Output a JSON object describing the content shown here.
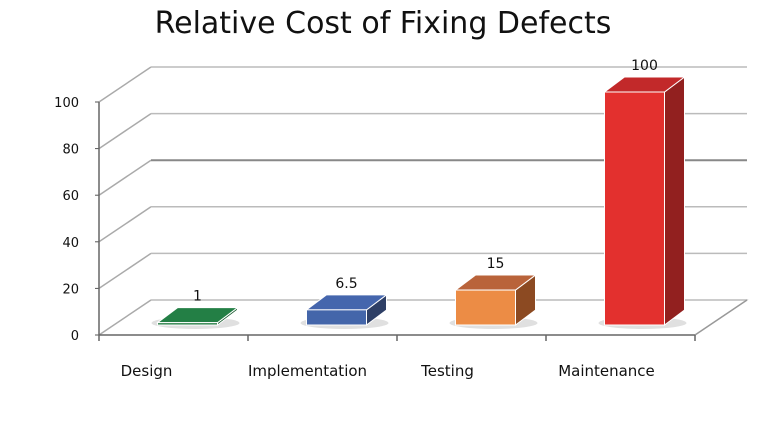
{
  "chart_data": {
    "type": "bar",
    "title": "Relative Cost of Fixing Defects",
    "categories": [
      "Design",
      "Implementation",
      "Testing",
      "Maintenance"
    ],
    "values": [
      1,
      6.5,
      15,
      100
    ],
    "data_labels": [
      "1",
      "6.5",
      "15",
      "100"
    ],
    "colors": [
      "#1f7a3f",
      "#4466aa",
      "#ec8c45",
      "#e3302e"
    ],
    "side_colors": [
      "#155a2d",
      "#2e3f66",
      "#8c4a22",
      "#92201f"
    ],
    "top_colors": [
      "#237f45",
      "#4566ad",
      "#b9633a",
      "#c2292a"
    ],
    "yticks": [
      0,
      20,
      40,
      60,
      80,
      100
    ],
    "ylim": [
      0,
      100
    ],
    "xlabel": "",
    "ylabel": "",
    "grid": true,
    "style": "3d"
  }
}
